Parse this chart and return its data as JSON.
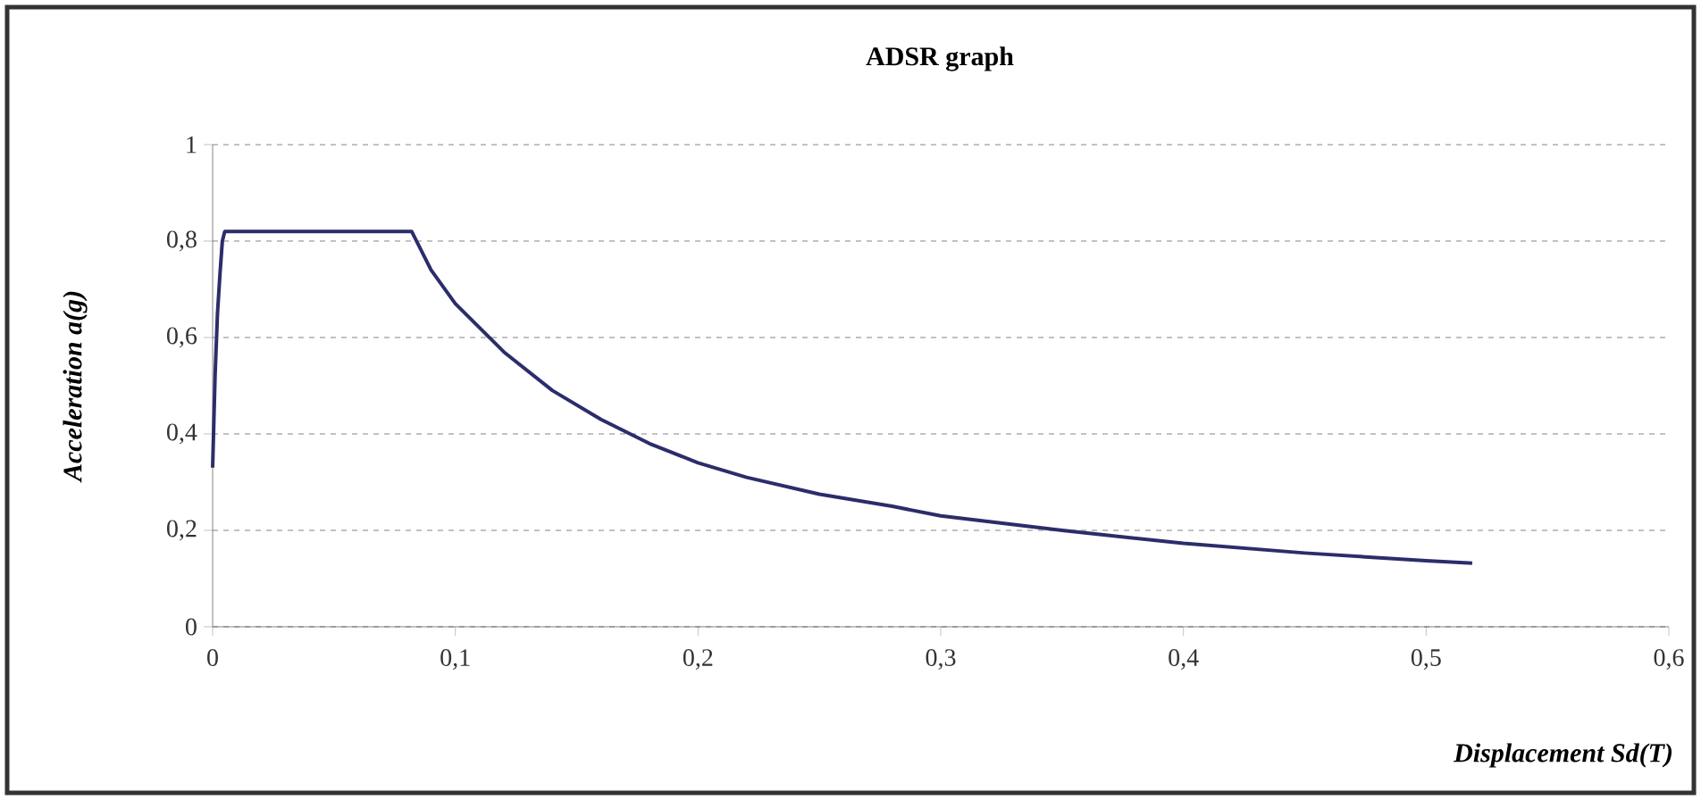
{
  "chart_data": {
    "type": "line",
    "title": "ADSR graph",
    "xlabel": "Displacement Sd(T)",
    "ylabel": "Acceleration a(g)",
    "x": [
      0,
      0.001,
      0.002,
      0.003,
      0.004,
      0.005,
      0.082,
      0.09,
      0.1,
      0.12,
      0.14,
      0.16,
      0.18,
      0.2,
      0.22,
      0.25,
      0.28,
      0.3,
      0.35,
      0.4,
      0.45,
      0.5,
      0.519
    ],
    "series": [
      {
        "color": "#2b2d6b",
        "values": [
          0.33,
          0.52,
          0.65,
          0.73,
          0.8,
          0.82,
          0.82,
          0.74,
          0.67,
          0.57,
          0.49,
          0.43,
          0.38,
          0.34,
          0.31,
          0.275,
          0.25,
          0.23,
          0.2,
          0.173,
          0.153,
          0.137,
          0.132
        ]
      }
    ],
    "xlim": [
      0,
      0.6
    ],
    "ylim": [
      0,
      1
    ],
    "xticks": [
      0,
      {
        "value": 0.1,
        "label": "0,1"
      },
      {
        "value": 0.2,
        "label": "0,2"
      },
      {
        "value": 0.3,
        "label": "0,3"
      },
      {
        "value": 0.4,
        "label": "0,4"
      },
      {
        "value": 0.5,
        "label": "0,5"
      },
      {
        "value": 0.6,
        "label": "0,6"
      }
    ],
    "yticks": [
      0,
      {
        "value": 0.2,
        "label": "0,2"
      },
      {
        "value": 0.4,
        "label": "0,4"
      },
      {
        "value": 0.6,
        "label": "0,6"
      },
      {
        "value": 0.8,
        "label": "0,8"
      },
      1
    ],
    "grid": "y",
    "marker": "none",
    "line_style": "solid"
  }
}
